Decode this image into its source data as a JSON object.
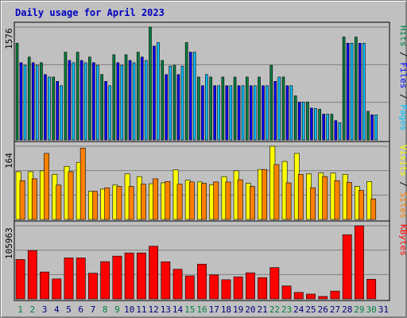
{
  "chart_data": [
    {
      "type": "bar",
      "title": "Daily usage for April 2023",
      "categories": [
        "1",
        "2",
        "3",
        "4",
        "5",
        "6",
        "7",
        "8",
        "9",
        "10",
        "11",
        "12",
        "13",
        "14",
        "15",
        "16",
        "17",
        "18",
        "19",
        "20",
        "21",
        "22",
        "23",
        "24",
        "25",
        "26",
        "27",
        "28",
        "29",
        "30",
        "31"
      ],
      "weekend_days": [
        "1",
        "2",
        "8",
        "9",
        "15",
        "16",
        "22",
        "23",
        "29",
        "30"
      ],
      "ylim": [
        0,
        1576
      ],
      "y_tick_label": "1576",
      "series": [
        {
          "name": "Hits",
          "color": "#008040",
          "values": [
            1350,
            1157,
            1078,
            878,
            1225,
            1225,
            1157,
            913,
            1190,
            1190,
            1225,
            1576,
            1110,
            1043,
            1359,
            878,
            878,
            878,
            878,
            878,
            878,
            1043,
            878,
            615,
            528,
            430,
            360,
            1437,
            1437,
            400,
            0
          ]
        },
        {
          "name": "Files",
          "color": "#0000ff",
          "values": [
            1078,
            1078,
            913,
            818,
            1110,
            1110,
            1078,
            818,
            1078,
            1110,
            1157,
            1310,
            913,
            913,
            1225,
            757,
            757,
            757,
            757,
            757,
            757,
            818,
            757,
            528,
            445,
            360,
            270,
            1350,
            1350,
            350,
            0
          ]
        },
        {
          "name": "Pages",
          "color": "#00c0ff",
          "values": [
            1043,
            1043,
            878,
            757,
            1078,
            1078,
            1043,
            757,
            1043,
            1078,
            1110,
            1359,
            1030,
            1030,
            1225,
            913,
            757,
            757,
            757,
            757,
            757,
            878,
            757,
            528,
            440,
            360,
            240,
            1350,
            1350,
            350,
            0
          ]
        }
      ],
      "legend": [
        "Pages",
        "Files",
        "Hits"
      ],
      "legend_placement": "right-vertical"
    },
    {
      "type": "bar",
      "categories": [
        "1",
        "2",
        "3",
        "4",
        "5",
        "6",
        "7",
        "8",
        "9",
        "10",
        "11",
        "12",
        "13",
        "14",
        "15",
        "16",
        "17",
        "18",
        "19",
        "20",
        "21",
        "22",
        "23",
        "24",
        "25",
        "26",
        "27",
        "28",
        "29",
        "30",
        "31"
      ],
      "ylim": [
        0,
        164
      ],
      "y_tick_label": "164",
      "series": [
        {
          "name": "Visits",
          "color": "#ffff00",
          "values": [
            107,
            107,
            109,
            101,
            119,
            128,
            63,
            68,
            77,
            102,
            96,
            80,
            82,
            111,
            88,
            84,
            78,
            96,
            109,
            81,
            112,
            164,
            130,
            148,
            102,
            104,
            104,
            101,
            74,
            85,
            0
          ]
        },
        {
          "name": "Sites",
          "color": "#ff8000",
          "values": [
            87,
            91,
            148,
            77,
            107,
            160,
            63,
            71,
            74,
            74,
            79,
            91,
            85,
            79,
            84,
            81,
            84,
            84,
            89,
            74,
            112,
            123,
            82,
            101,
            71,
            96,
            87,
            83,
            65,
            46,
            0
          ]
        }
      ],
      "legend": [
        "Sites",
        "Visits"
      ],
      "legend_placement": "right-vertical"
    },
    {
      "type": "bar",
      "categories": [
        "1",
        "2",
        "3",
        "4",
        "5",
        "6",
        "7",
        "8",
        "9",
        "10",
        "11",
        "12",
        "13",
        "14",
        "15",
        "16",
        "17",
        "18",
        "19",
        "20",
        "21",
        "22",
        "23",
        "24",
        "25",
        "26",
        "27",
        "28",
        "29",
        "30",
        "31"
      ],
      "ylim": [
        0,
        105963
      ],
      "y_tick_label": "105963",
      "series": [
        {
          "name": "KBytes",
          "color": "#ff0000",
          "values": [
            57160,
            70000,
            39050,
            29000,
            59400,
            59400,
            37300,
            54000,
            62000,
            66600,
            66600,
            76400,
            53800,
            43000,
            33400,
            50400,
            34800,
            27800,
            32000,
            37800,
            30900,
            45400,
            18800,
            9400,
            7000,
            3600,
            11400,
            93000,
            105963,
            28500,
            0
          ]
        }
      ],
      "legend": [
        "KBytes"
      ],
      "legend_placement": "right-vertical"
    }
  ],
  "colors": {
    "background": "#c0c0c0",
    "title": "#0000c0",
    "weekday_label": "#000080",
    "weekend_label": "#008040",
    "separator": "#ffffff"
  }
}
